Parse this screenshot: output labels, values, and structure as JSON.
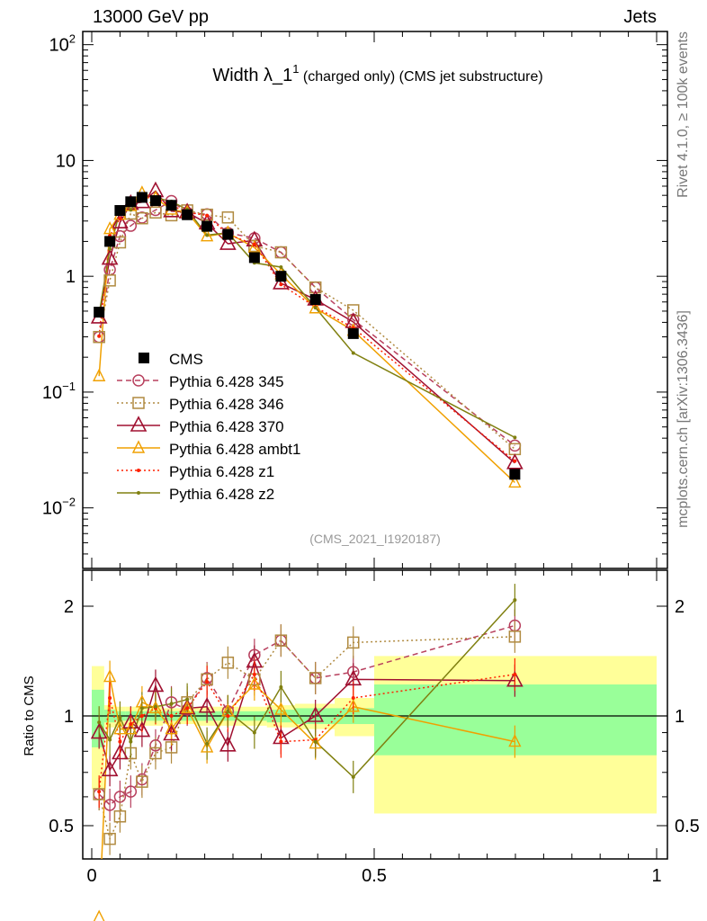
{
  "header": {
    "left": "13000 GeV pp",
    "right": "Jets"
  },
  "side_text": {
    "rivet": "Rivet 4.1.0, ≥ 100k events",
    "mcplots": "mcplots.cern.ch [arXiv:1306.3436]"
  },
  "chart_data": [
    {
      "type": "line",
      "panel": "main",
      "title_main": "Width λ_1",
      "title_sup": "1",
      "title_sub": "(charged only) (CMS jet substructure)",
      "analysis_label": "(CMS_2021_I1920187)",
      "yscale": "log",
      "ylim": [
        0.003,
        130
      ],
      "xlim": [
        -0.015,
        1.02
      ],
      "ytick_labels": [
        {
          "v": 100,
          "base": "10",
          "exp": "2"
        },
        {
          "v": 10,
          "base": "10",
          "exp": ""
        },
        {
          "v": 1,
          "base": "1",
          "exp": ""
        },
        {
          "v": 0.1,
          "base": "10",
          "exp": "−1"
        },
        {
          "v": 0.01,
          "base": "10",
          "exp": "−2"
        }
      ],
      "legend_placement": "center-left",
      "x": [
        0.013,
        0.032,
        0.05,
        0.069,
        0.089,
        0.113,
        0.141,
        0.169,
        0.204,
        0.241,
        0.288,
        0.335,
        0.396,
        0.463,
        0.749
      ],
      "data": {
        "name": "CMS",
        "values": [
          0.49,
          2.0,
          3.7,
          4.4,
          4.8,
          4.5,
          4.1,
          3.4,
          2.7,
          2.3,
          1.45,
          1.0,
          0.63,
          0.32,
          0.0195
        ]
      },
      "note": "MC values in main panel = CMS value x ratio"
    },
    {
      "type": "line",
      "panel": "ratio",
      "ylabel": "Ratio to CMS",
      "yscale": "log",
      "ylim": [
        0.41,
        2.4
      ],
      "xtick_labels": [
        {
          "v": 0,
          "label": "0"
        },
        {
          "v": 0.5,
          "label": "0.5"
        },
        {
          "v": 1,
          "label": "1"
        }
      ],
      "ytick_labels": [
        {
          "v": 2,
          "label": "2"
        },
        {
          "v": 1,
          "label": "1"
        },
        {
          "v": 0.5,
          "label": "0.5"
        }
      ],
      "band_edges": [
        0,
        0.022,
        0.042,
        0.06,
        0.079,
        0.1,
        0.126,
        0.155,
        0.185,
        0.223,
        0.26,
        0.31,
        0.36,
        0.43,
        0.5,
        1.0
      ],
      "band_total": [
        0.37,
        0.07,
        0.06,
        0.06,
        0.06,
        0.06,
        0.05,
        0.05,
        0.06,
        0.06,
        0.06,
        0.07,
        0.08,
        0.12,
        0.46
      ],
      "band_stat": [
        0.18,
        0.04,
        0.03,
        0.03,
        0.03,
        0.03,
        0.03,
        0.03,
        0.03,
        0.03,
        0.03,
        0.04,
        0.05,
        0.05,
        0.22
      ],
      "series": [
        {
          "name": "Pythia 6.428 345",
          "color": "#b8405e",
          "dash": "6,4",
          "marker": "circle",
          "values": [
            0.61,
            0.57,
            0.6,
            0.62,
            0.67,
            0.83,
            1.09,
            1.04,
            1.27,
            1.03,
            1.47,
            1.61,
            1.27,
            1.32,
            1.77
          ]
        },
        {
          "name": "Pythia 6.428 346",
          "color": "#b08a40",
          "dash": "2,3",
          "marker": "square",
          "values": [
            0.61,
            0.46,
            0.53,
            0.79,
            0.66,
            0.79,
            0.82,
            1.09,
            1.26,
            1.4,
            1.26,
            1.61,
            1.27,
            1.59,
            1.65
          ]
        },
        {
          "name": "Pythia 6.428 370",
          "color": "#a01030",
          "dash": "",
          "marker": "triangle",
          "values": [
            0.9,
            0.71,
            0.79,
            0.96,
            0.91,
            1.21,
            0.89,
            1.05,
            1.06,
            0.83,
            1.41,
            0.87,
            1.0,
            1.26,
            1.25
          ]
        },
        {
          "name": "Pythia 6.428 ambt1",
          "color": "#f0a000",
          "dash": "",
          "marker": "triangle-small",
          "values": [
            0.28,
            1.28,
            0.92,
            0.92,
            1.09,
            1.05,
            0.92,
            1.05,
            0.82,
            1.03,
            1.22,
            1.04,
            0.84,
            1.06,
            0.85
          ]
        },
        {
          "name": "Pythia 6.428 z1",
          "color": "#ff2000",
          "dash": "2,3",
          "marker": "dot",
          "values": [
            0.62,
            1.12,
            0.85,
            0.95,
            1.0,
            1.05,
            1.0,
            1.05,
            1.24,
            1.0,
            1.3,
            0.85,
            0.86,
            1.12,
            1.3
          ]
        },
        {
          "name": "Pythia 6.428 z2",
          "color": "#808010",
          "dash": "",
          "marker": "dot",
          "values": [
            0.96,
            0.86,
            0.99,
            0.85,
            1.05,
            1.06,
            1.08,
            1.11,
            0.84,
            1.03,
            0.9,
            1.2,
            0.85,
            0.68,
            2.08
          ]
        }
      ]
    }
  ]
}
